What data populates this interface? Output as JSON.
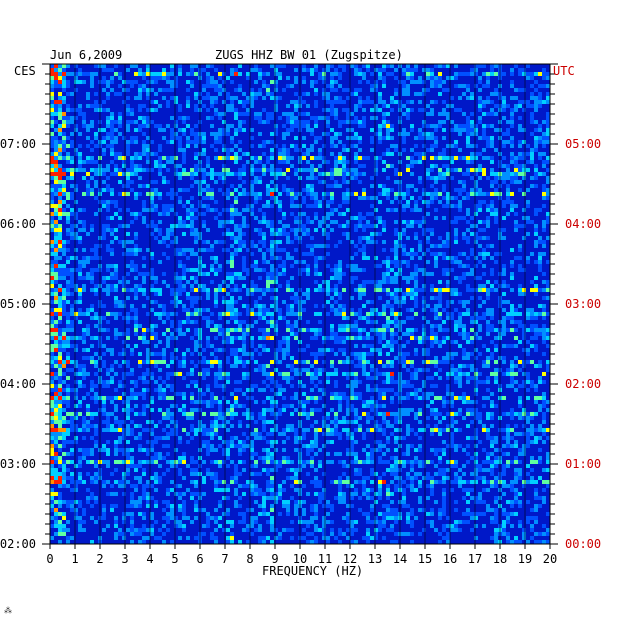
{
  "chart_data": {
    "type": "heatmap",
    "date": "Jun 6,2009",
    "title": "ZUGS HHZ BW 01 (Zugspitze)",
    "xlabel": "FREQUENCY (HZ)",
    "x_ticks": [
      "0",
      "1",
      "2",
      "3",
      "4",
      "5",
      "6",
      "7",
      "8",
      "9",
      "10",
      "11",
      "12",
      "13",
      "14",
      "15",
      "16",
      "17",
      "18",
      "19",
      "20"
    ],
    "xlim": [
      0,
      20
    ],
    "left_axis_label": "CES",
    "left_ticks": [
      "07:00",
      "06:00",
      "05:00",
      "04:00",
      "03:00",
      "02:00"
    ],
    "right_axis_label": "UTC",
    "right_ticks": [
      "05:00",
      "04:00",
      "03:00",
      "02:00",
      "01:00",
      "00:00"
    ],
    "colors": {
      "low": "#0010c0",
      "mid": "#00b0ff",
      "high": "#ffff00",
      "peak": "#ff3000",
      "axis_red": "#cc0000"
    },
    "bright_bands_hz": [
      0.4,
      7.3,
      8.8,
      13.5
    ]
  },
  "corner_mark": "⁂"
}
